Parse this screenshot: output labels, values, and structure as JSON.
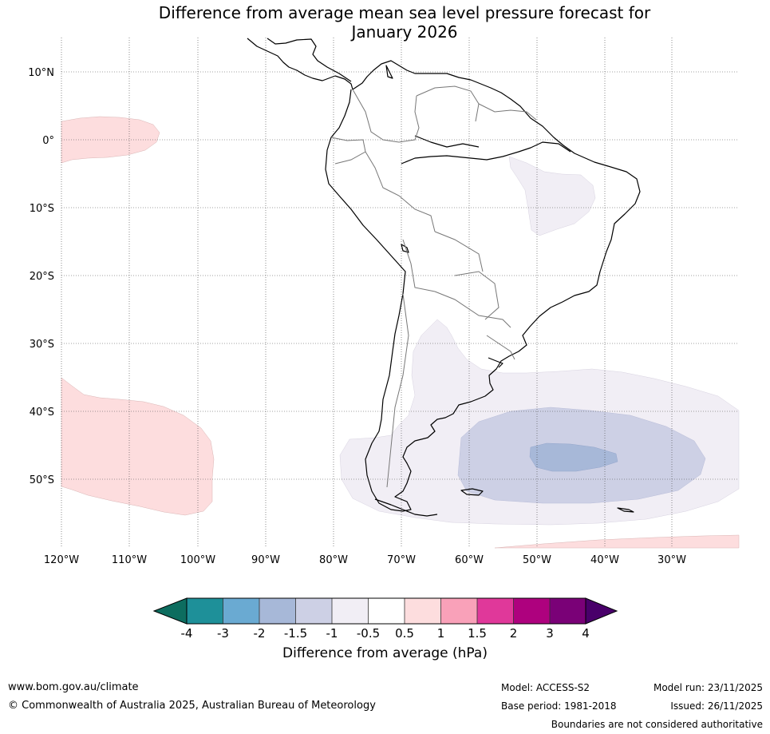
{
  "title": {
    "line1": "Difference from average mean sea level pressure forecast for",
    "line2": "January 2026"
  },
  "axes": {
    "lat_labels": [
      "10°N",
      "0°",
      "10°S",
      "20°S",
      "30°S",
      "40°S",
      "50°S"
    ],
    "lon_labels": [
      "120°W",
      "110°W",
      "100°W",
      "90°W",
      "80°W",
      "70°W",
      "60°W",
      "50°W",
      "40°W",
      "30°W"
    ]
  },
  "colorbar": {
    "title": "Difference from average (hPa)",
    "ticks": [
      "-4",
      "-3",
      "-2",
      "-1.5",
      "-1",
      "-0.5",
      "0.5",
      "1",
      "1.5",
      "2",
      "3",
      "4"
    ],
    "colors": [
      "#1e9099",
      "#6aaad2",
      "#a7b8d8",
      "#cdd0e5",
      "#f1eef5",
      "#ffffff",
      "#fdddde",
      "#f9a1b9",
      "#e0389a",
      "#ae017e",
      "#7a0177"
    ],
    "low_extend_color": "#0d6d5f",
    "high_extend_color": "#49006a"
  },
  "footer": {
    "url": "www.bom.gov.au/climate",
    "copyright": "© Commonwealth of Australia 2025, Australian Bureau of Meteorology",
    "model": "Model: ACCESS-S2",
    "base_period": "Base period: 1981-2018",
    "model_run": "Model run: 23/11/2025",
    "issued": "Issued: 26/11/2025",
    "disclaimer": "Boundaries are not considered authoritative"
  }
}
